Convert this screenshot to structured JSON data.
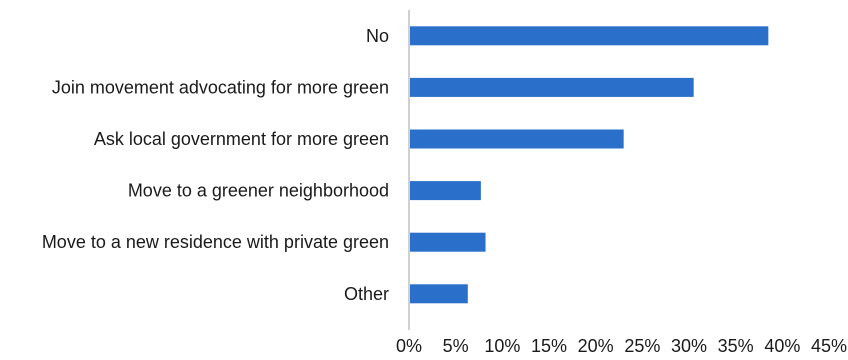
{
  "chart_data": {
    "type": "bar",
    "orientation": "horizontal",
    "title": "",
    "xlabel": "",
    "ylabel": "",
    "categories": [
      "No",
      "Join movement advocating for more green",
      "Ask local government for more green",
      "Move to a greener neighborhood",
      "Move to a new residence with private green",
      "Other"
    ],
    "values": [
      38.5,
      30.5,
      23,
      7.7,
      8.2,
      6.3
    ],
    "xlim": [
      0,
      45
    ],
    "x_ticks": [
      0,
      5,
      10,
      15,
      20,
      25,
      30,
      35,
      40,
      45
    ],
    "x_tick_labels": [
      "0%",
      "5%",
      "10%",
      "15%",
      "20%",
      "25%",
      "30%",
      "35%",
      "40%",
      "45%"
    ],
    "bar_color": "#2a6fc9",
    "grid": false,
    "legend": "none"
  }
}
